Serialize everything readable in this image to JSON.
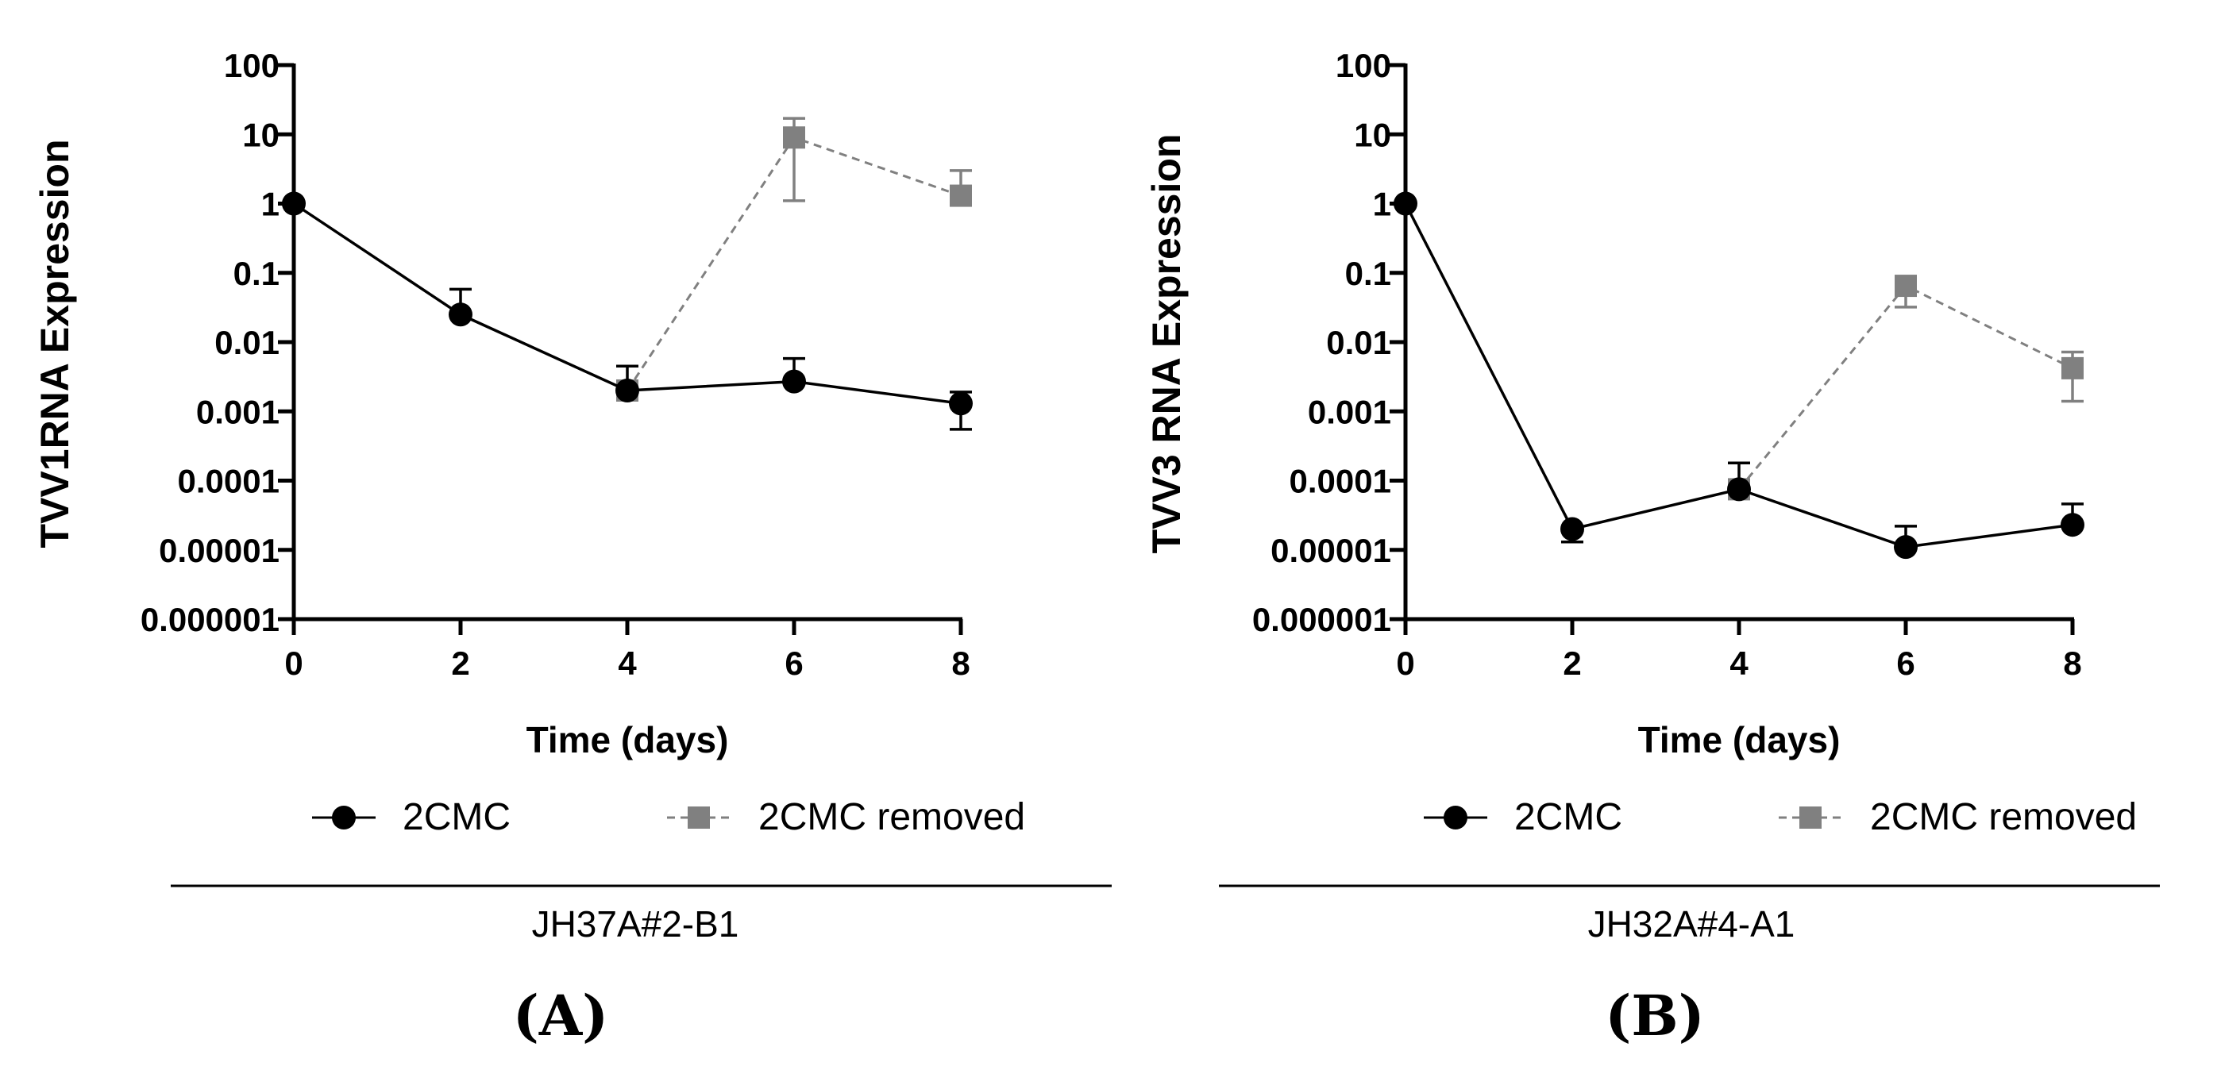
{
  "chart_data": [
    {
      "type": "line",
      "panel_label": "(A)",
      "cell_line": "JH37A#2-B1",
      "xlabel": "Time (days)",
      "ylabel": "TVV1RNA Expression",
      "yscale": "log",
      "ylim": [
        1e-06,
        100
      ],
      "xlim": [
        0,
        8
      ],
      "x_ticks": [
        "0",
        "2",
        "4",
        "6",
        "8"
      ],
      "y_ticks": [
        "100",
        "10",
        "1",
        "0.1",
        "0.01",
        "0.001",
        "0.0001",
        "0.00001",
        "0.000001"
      ],
      "series": [
        {
          "name": "2CMC",
          "color": "#000000",
          "marker": "circle",
          "line_style": "solid",
          "x": [
            0,
            2,
            4,
            6,
            8
          ],
          "values": [
            1,
            0.025,
            0.002,
            0.0027,
            0.0013
          ],
          "err_upper": [
            1.05,
            0.058,
            0.0045,
            0.0058,
            0.0019
          ],
          "err_lower": [
            0.95,
            0.025,
            0.002,
            0.0027,
            0.00055
          ]
        },
        {
          "name": "2CMC removed",
          "color": "#808080",
          "marker": "square",
          "line_style": "dashed",
          "x": [
            4,
            6,
            8
          ],
          "values": [
            0.002,
            9,
            1.3
          ],
          "err_upper": [
            0.002,
            17,
            3
          ],
          "err_lower": [
            0.002,
            1.1,
            1.3
          ]
        }
      ]
    },
    {
      "type": "line",
      "panel_label": "(B)",
      "cell_line": "JH32A#4-A1",
      "xlabel": "Time (days)",
      "ylabel": "TVV3 RNA Expression",
      "yscale": "log",
      "ylim": [
        1e-06,
        100
      ],
      "xlim": [
        0,
        8
      ],
      "x_ticks": [
        "0",
        "2",
        "4",
        "6",
        "8"
      ],
      "y_ticks": [
        "100",
        "10",
        "1",
        "0.1",
        "0.01",
        "0.001",
        "0.0001",
        "0.00001",
        "0.000001"
      ],
      "series": [
        {
          "name": "2CMC",
          "color": "#000000",
          "marker": "circle",
          "line_style": "solid",
          "x": [
            0,
            2,
            4,
            6,
            8
          ],
          "values": [
            1,
            2e-05,
            7.5e-05,
            1.1e-05,
            2.3e-05
          ],
          "err_upper": [
            1.05,
            2e-05,
            0.00018,
            2.2e-05,
            4.6e-05
          ],
          "err_lower": [
            0.95,
            1.3e-05,
            7.5e-05,
            1.1e-05,
            2.3e-05
          ]
        },
        {
          "name": "2CMC removed",
          "color": "#808080",
          "marker": "square",
          "line_style": "dashed",
          "x": [
            4,
            6,
            8
          ],
          "values": [
            7.5e-05,
            0.065,
            0.0042
          ],
          "err_upper": [
            7.5e-05,
            0.065,
            0.0072
          ],
          "err_lower": [
            7.5e-05,
            0.032,
            0.0014
          ]
        }
      ]
    }
  ]
}
